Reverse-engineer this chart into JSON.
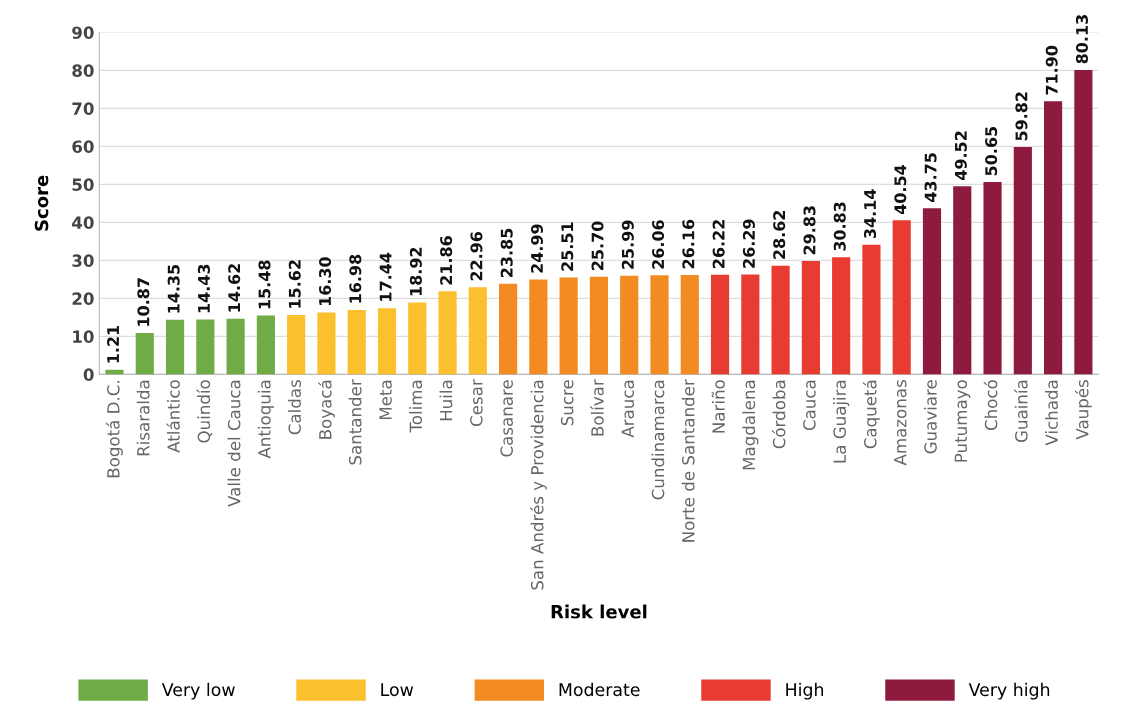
{
  "chart_data": {
    "type": "bar",
    "xlabel": "Risk level",
    "ylabel": "Score",
    "categories": [
      "Bogotá D.C.",
      "Risaralda",
      "Atlántico",
      "Quindío",
      "Valle del Cauca",
      "Antioquia",
      "Caldas",
      "Boyacá",
      "Santander",
      "Meta",
      "Tolima",
      "Huila",
      "Cesar",
      "Casanare",
      "San Andrés y Providencia",
      "Sucre",
      "Bolívar",
      "Arauca",
      "Cundinamarca",
      "Norte de Santander",
      "Nariño",
      "Magdalena",
      "Córdoba",
      "Cauca",
      "La Guajira",
      "Caquetá",
      "Amazonas",
      "Guaviare",
      "Putumayo",
      "Chocó",
      "Guainía",
      "Vichada",
      "Vaupés"
    ],
    "series": [
      {
        "name": "Very low",
        "color": "#6fac46",
        "values": [
          1.21,
          10.87,
          14.35,
          14.43,
          14.62,
          15.48,
          null,
          null,
          null,
          null,
          null,
          null,
          null,
          null,
          null,
          null,
          null,
          null,
          null,
          null,
          null,
          null,
          null,
          null,
          null,
          null,
          null,
          null,
          null,
          null,
          null,
          null,
          null
        ],
        "value_labels": [
          "1.21",
          "10.87",
          "14.35",
          "14.43",
          "14.62",
          "15.48",
          null,
          null,
          null,
          null,
          null,
          null,
          null,
          null,
          null,
          null,
          null,
          null,
          null,
          null,
          null,
          null,
          null,
          null,
          null,
          null,
          null,
          null,
          null,
          null,
          null,
          null,
          null
        ]
      },
      {
        "name": "Low",
        "color": "#fbc02d",
        "values": [
          null,
          null,
          null,
          null,
          null,
          null,
          15.62,
          16.3,
          16.98,
          17.44,
          18.92,
          21.86,
          22.96,
          null,
          null,
          null,
          null,
          null,
          null,
          null,
          null,
          null,
          null,
          null,
          null,
          null,
          null,
          null,
          null,
          null,
          null,
          null,
          null
        ],
        "value_labels": [
          null,
          null,
          null,
          null,
          null,
          null,
          "15.62",
          "16.30",
          "16.98",
          "17.44",
          "18.92",
          "21.86",
          "22.96",
          null,
          null,
          null,
          null,
          null,
          null,
          null,
          null,
          null,
          null,
          null,
          null,
          null,
          null,
          null,
          null,
          null,
          null,
          null,
          null
        ]
      },
      {
        "name": "Moderate",
        "color": "#f28b22",
        "values": [
          null,
          null,
          null,
          null,
          null,
          null,
          null,
          null,
          null,
          null,
          null,
          null,
          null,
          23.85,
          24.99,
          25.51,
          25.7,
          25.99,
          26.06,
          26.16,
          null,
          null,
          null,
          null,
          null,
          null,
          null,
          null,
          null,
          null,
          null,
          null,
          null
        ],
        "value_labels": [
          null,
          null,
          null,
          null,
          null,
          null,
          null,
          null,
          null,
          null,
          null,
          null,
          null,
          "23.85",
          "24.99",
          "25.51",
          "25.70",
          "25.99",
          "26.06",
          "26.16",
          null,
          null,
          null,
          null,
          null,
          null,
          null,
          null,
          null,
          null,
          null,
          null,
          null
        ]
      },
      {
        "name": "High",
        "color": "#e83c33",
        "values": [
          null,
          null,
          null,
          null,
          null,
          null,
          null,
          null,
          null,
          null,
          null,
          null,
          null,
          null,
          null,
          null,
          null,
          null,
          null,
          null,
          26.22,
          26.29,
          28.62,
          29.83,
          30.83,
          34.14,
          40.54,
          null,
          null,
          null,
          null,
          null,
          null
        ],
        "value_labels": [
          null,
          null,
          null,
          null,
          null,
          null,
          null,
          null,
          null,
          null,
          null,
          null,
          null,
          null,
          null,
          null,
          null,
          null,
          null,
          null,
          "26.22",
          "26.29",
          "28.62",
          "29.83",
          "30.83",
          "34.14",
          "40.54",
          null,
          null,
          null,
          null,
          null,
          null
        ]
      },
      {
        "name": "Very high",
        "color": "#8e1b3d",
        "values": [
          null,
          null,
          null,
          null,
          null,
          null,
          null,
          null,
          null,
          null,
          null,
          null,
          null,
          null,
          null,
          null,
          null,
          null,
          null,
          null,
          null,
          null,
          null,
          null,
          null,
          null,
          null,
          43.75,
          49.52,
          50.65,
          59.82,
          71.9,
          80.13
        ],
        "value_labels": [
          null,
          null,
          null,
          null,
          null,
          null,
          null,
          null,
          null,
          null,
          null,
          null,
          null,
          null,
          null,
          null,
          null,
          null,
          null,
          null,
          null,
          null,
          null,
          null,
          null,
          null,
          null,
          "43.75",
          "49.52",
          "50.65",
          "59.82",
          "71.90",
          "80.13"
        ]
      }
    ],
    "ylim": [
      0,
      90
    ],
    "yticks": [
      0,
      10,
      20,
      30,
      40,
      50,
      60,
      70,
      80,
      90
    ],
    "grid": "y",
    "legend": "bottom"
  }
}
